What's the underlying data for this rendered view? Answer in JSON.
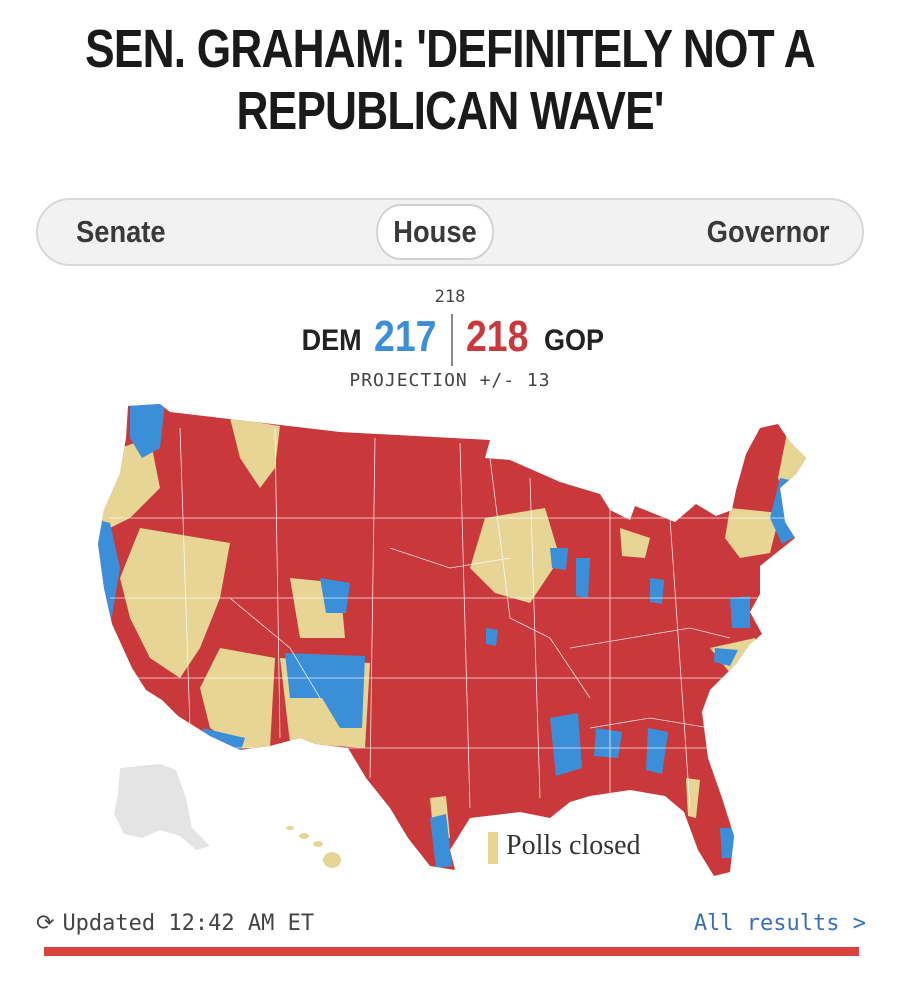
{
  "headline": {
    "line1": "SEN. GRAHAM: 'DEFINITELY NOT A",
    "line2": "REPUBLICAN WAVE'"
  },
  "tabs": [
    {
      "label": "Senate",
      "active": false
    },
    {
      "label": "House",
      "active": true
    },
    {
      "label": "Governor",
      "active": false
    }
  ],
  "scoreboard": {
    "threshold": "218",
    "dem_label": "DEM",
    "dem_value": "217",
    "gop_value": "218",
    "gop_label": "GOP",
    "projection": "PROJECTION +/- 13"
  },
  "map": {
    "legend_label": "Polls closed",
    "colors": {
      "dem": "#3b8fd9",
      "gop": "#c9393b",
      "polls_closed": "#e6d594",
      "no_race": "#e4e4e4"
    }
  },
  "footer": {
    "refresh_icon": "refresh-icon",
    "updated_text": "Updated 12:42 AM ET",
    "all_results_label": "All results >"
  },
  "accent_bar_color": "#d9423d"
}
